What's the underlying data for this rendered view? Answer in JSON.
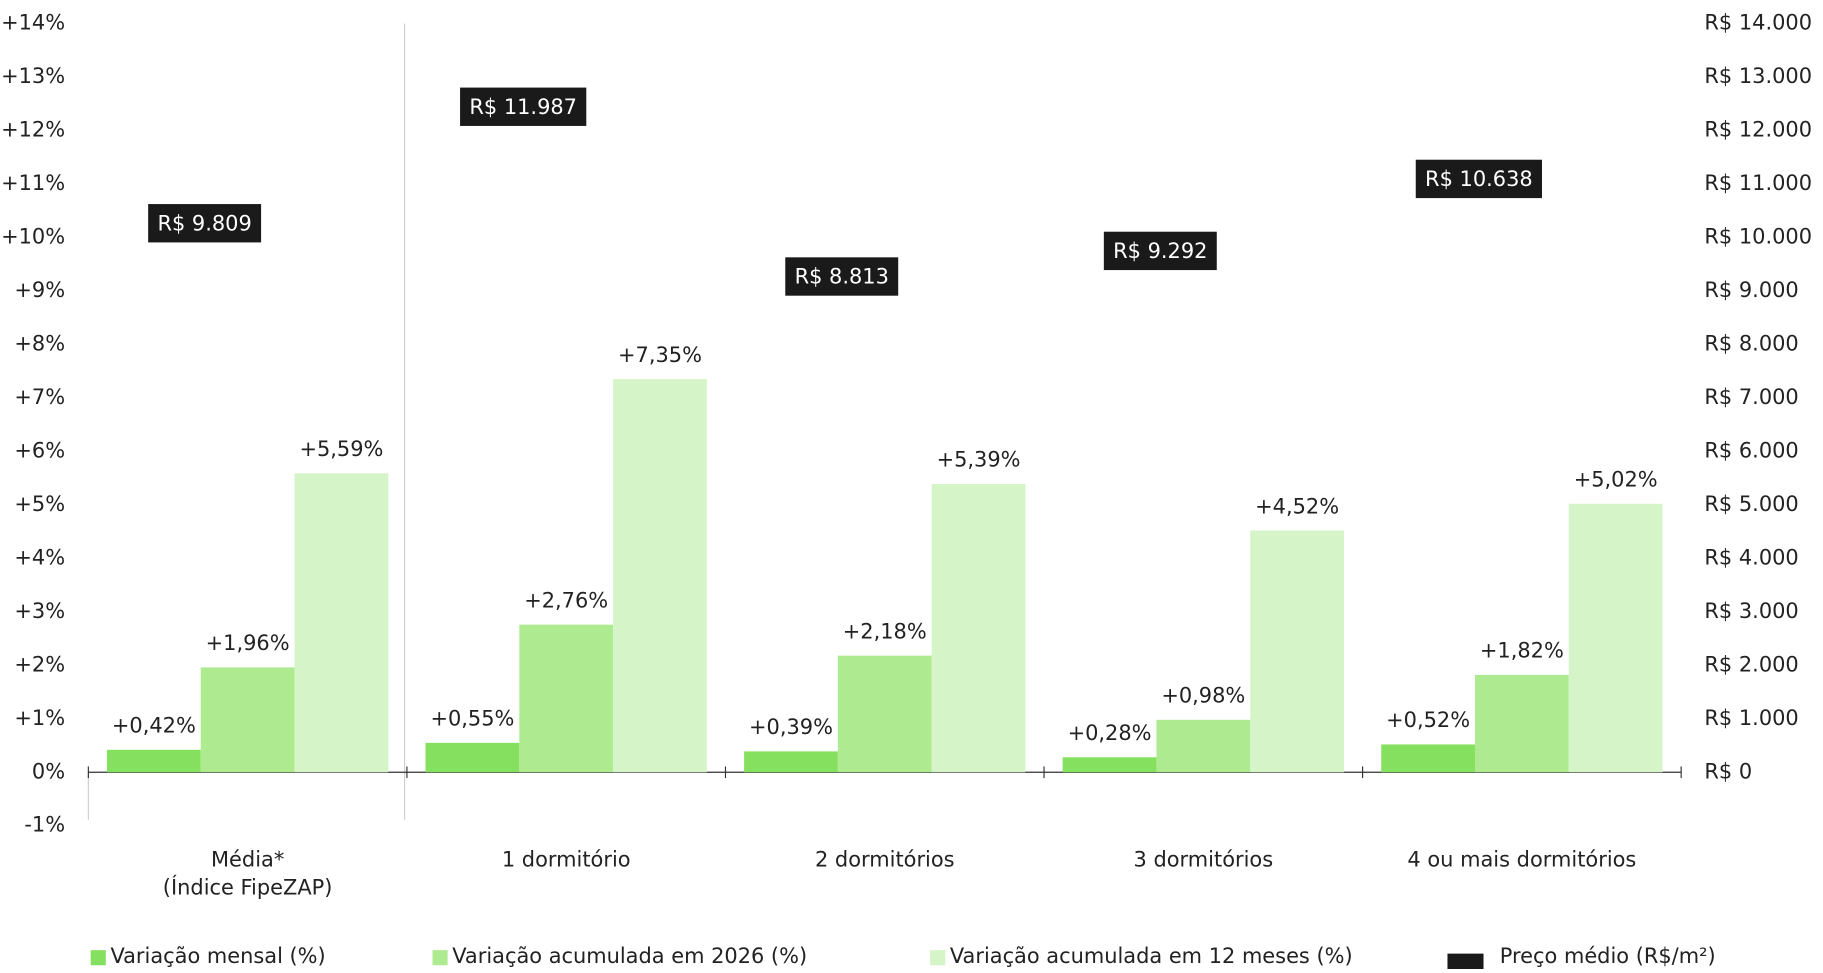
{
  "chart_data": {
    "type": "bar",
    "categories": [
      "Média*\n(Índice FipeZAP)",
      "1 dormitório",
      "2 dormitórios",
      "3 dormitórios",
      "4 ou mais dormitórios"
    ],
    "series": [
      {
        "name": "Variação mensal (%)",
        "color": "#86e05f",
        "values": [
          0.42,
          0.55,
          0.39,
          0.28,
          0.52
        ],
        "value_labels": [
          "+0,42%",
          "+0,55%",
          "+0,39%",
          "+0,28%",
          "+0,52%"
        ]
      },
      {
        "name": "Variação acumulada em 2026 (%)",
        "color": "#aeeb90",
        "values": [
          1.96,
          2.76,
          2.18,
          0.98,
          1.82
        ],
        "value_labels": [
          "+1,96%",
          "+2,76%",
          "+2,18%",
          "+0,98%",
          "+1,82%"
        ]
      },
      {
        "name": "Variação acumulada em 12 meses (%)",
        "color": "#d5f5c8",
        "values": [
          5.59,
          7.35,
          5.39,
          4.52,
          5.02
        ],
        "value_labels": [
          "+5,59%",
          "+7,35%",
          "+5,39%",
          "+4,52%",
          "+5,02%"
        ]
      },
      {
        "name": "Preço médio (R$/m²)",
        "color": "#1a1a1a",
        "axis": "y2",
        "values": [
          9809,
          11987,
          8813,
          9292,
          10638
        ],
        "value_labels": [
          "R$ 9.809",
          "R$ 11.987",
          "R$ 8.813",
          "R$ 9.292",
          "R$ 10.638"
        ]
      }
    ],
    "ylim": [
      -1,
      14
    ],
    "yticks": [
      {
        "value": -1,
        "label": "-1%"
      },
      {
        "value": 0,
        "label": "0%"
      },
      {
        "value": 1,
        "label": "+1%"
      },
      {
        "value": 2,
        "label": "+2%"
      },
      {
        "value": 3,
        "label": "+3%"
      },
      {
        "value": 4,
        "label": "+4%"
      },
      {
        "value": 5,
        "label": "+5%"
      },
      {
        "value": 6,
        "label": "+6%"
      },
      {
        "value": 7,
        "label": "+7%"
      },
      {
        "value": 8,
        "label": "+8%"
      },
      {
        "value": 9,
        "label": "+9%"
      },
      {
        "value": 10,
        "label": "+10%"
      },
      {
        "value": 11,
        "label": "+11%"
      },
      {
        "value": 12,
        "label": "+12%"
      },
      {
        "value": 13,
        "label": "+13%"
      },
      {
        "value": 14,
        "label": "+14%"
      }
    ],
    "y2lim": [
      -1000,
      14000
    ],
    "y2ticks": [
      {
        "value": 0,
        "label": "R$ 0"
      },
      {
        "value": 1000,
        "label": "R$ 1.000"
      },
      {
        "value": 2000,
        "label": "R$ 2.000"
      },
      {
        "value": 3000,
        "label": "R$ 3.000"
      },
      {
        "value": 4000,
        "label": "R$ 4.000"
      },
      {
        "value": 5000,
        "label": "R$ 5.000"
      },
      {
        "value": 6000,
        "label": "R$ 6.000"
      },
      {
        "value": 7000,
        "label": "R$ 7.000"
      },
      {
        "value": 8000,
        "label": "R$ 8.000"
      },
      {
        "value": 9000,
        "label": "R$ 9.000"
      },
      {
        "value": 10000,
        "label": "R$ 10.000"
      },
      {
        "value": 11000,
        "label": "R$ 11.000"
      },
      {
        "value": 12000,
        "label": "R$ 12.000"
      },
      {
        "value": 13000,
        "label": "R$ 13.000"
      },
      {
        "value": 14000,
        "label": "R$ 14.000"
      }
    ],
    "grid": false,
    "legend": "bottom"
  }
}
